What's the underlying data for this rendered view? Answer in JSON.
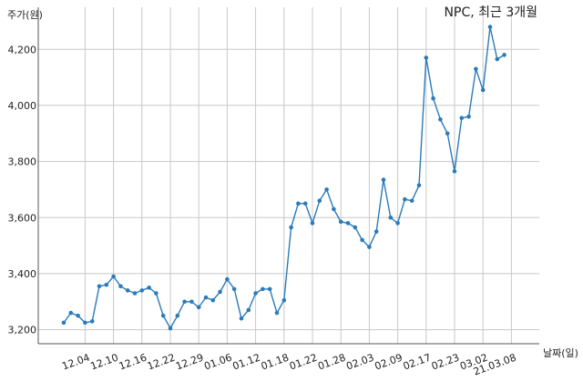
{
  "chart_data": {
    "type": "line",
    "title": "NPC, 최근 3개월",
    "xlabel": "날짜(일)",
    "ylabel": "주가(원)",
    "ylim": [
      3150,
      4350
    ],
    "yticks": [
      3200,
      3400,
      3600,
      3800,
      4000,
      4200
    ],
    "ytick_labels": [
      "3,200",
      "3,400",
      "3,600",
      "3,800",
      "4,000",
      "4,200"
    ],
    "xtick_labels": [
      "12.04",
      "12.10",
      "12.16",
      "12.22",
      "12.29",
      "01.06",
      "01.12",
      "01.18",
      "01.22",
      "01.28",
      "02.03",
      "02.09",
      "02.17",
      "02.23",
      "03.02",
      "21.03.08"
    ],
    "xtick_positions": [
      3,
      7,
      11,
      15,
      19,
      23,
      27,
      31,
      35,
      39,
      43,
      47,
      51,
      55,
      59,
      63
    ],
    "grid": true,
    "colors": {
      "line": "#2b7bb9",
      "grid": "#c8c8c8",
      "axis": "#555555"
    },
    "series": [
      {
        "values": [
          3225,
          3260,
          3250,
          3225,
          3230,
          3355,
          3360,
          3390,
          3355,
          3340,
          3330,
          3340,
          3350,
          3330,
          3250,
          3205,
          3250,
          3300,
          3300,
          3280,
          3315,
          3305,
          3335,
          3380,
          3345,
          3240,
          3270,
          3330,
          3345,
          3345,
          3260,
          3305,
          3565,
          3650,
          3650,
          3580,
          3660,
          3700,
          3630,
          3585,
          3580,
          3565,
          3520,
          3495,
          3550,
          3735,
          3600,
          3580,
          3665,
          3660,
          3715,
          4170,
          4025,
          3950,
          3900,
          3765,
          3955,
          3960,
          4130,
          4055,
          4280,
          4165,
          4180
        ]
      }
    ]
  }
}
